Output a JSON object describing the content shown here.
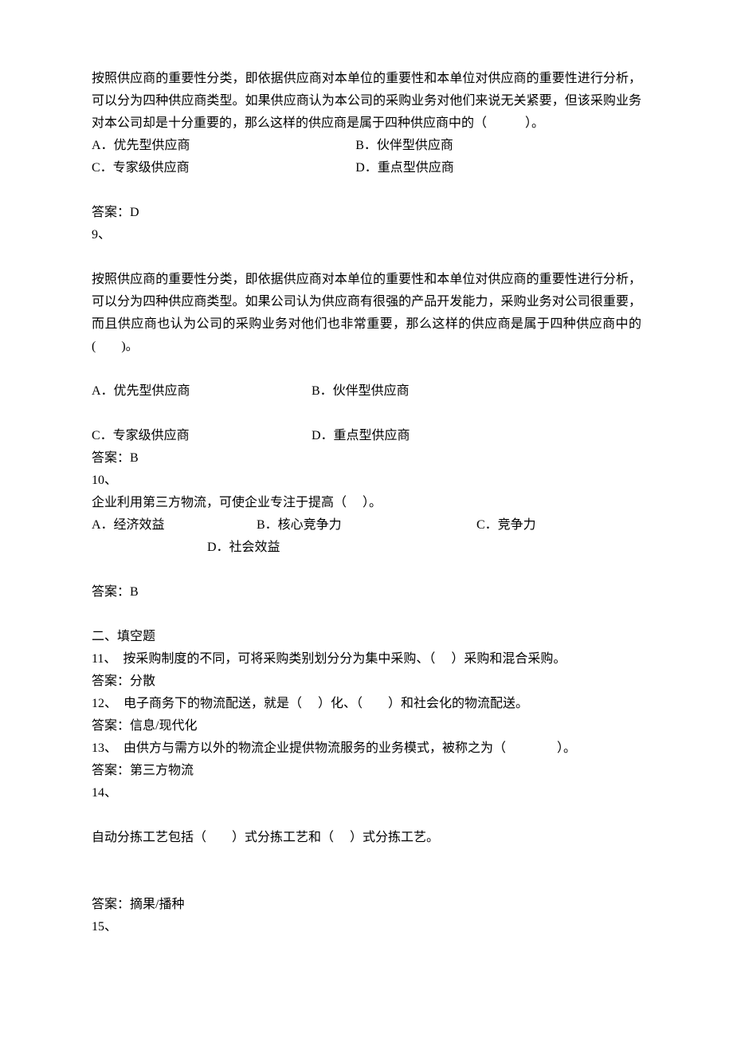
{
  "q8": {
    "stem": "按照供应商的重要性分类，即依据供应商对本单位的重要性和本单位对供应商的重要性进行分析，可以分为四种供应商类型。如果供应商认为本公司的采购业务对他们来说无关紧要，但该采购业务对本公司却是十分重要的，那么这样的供应商是属于四种供应商中的（　　　）。",
    "optA": "A．优先型供应商",
    "optB": "B．伙伴型供应商",
    "optC": "C．专家级供应商",
    "optD": "D．重点型供应商",
    "answer": "答案：D"
  },
  "q9": {
    "num": "9、",
    "stem": "按照供应商的重要性分类，即依据供应商对本单位的重要性和本单位对供应商的重要性进行分析，可以分为四种供应商类型。如果公司认为供应商有很强的产品开发能力，采购业务对公司很重要，而且供应商也认为公司的采购业务对他们也非常重要，那么这样的供应商是属于四种供应商中的(　　)。",
    "optA": "A．优先型供应商",
    "optB": "B．伙伴型供应商",
    "optC": "C．专家级供应商",
    "optD": "D．重点型供应商",
    "answer": "答案：B"
  },
  "q10": {
    "num": "10、",
    "stem": "企业利用第三方物流，可使企业专注于提高（　 ）。",
    "optA": "A．经济效益",
    "optB": "B．核心竞争力",
    "optC": "C．竞争力",
    "optD": "D．社会效益",
    "answer": "答案：B"
  },
  "section2": {
    "heading": "二、填空题"
  },
  "q11": {
    "stem": "11、　按采购制度的不同，可将采购类别划分分为集中采购、（　 ）采购和混合采购。",
    "answer": "答案：分散"
  },
  "q12": {
    "stem": "12、　电子商务下的物流配送，就是（　 ）化、（　　）和社会化的物流配送。",
    "answer": "答案：信息/现代化"
  },
  "q13": {
    "stem": "13、　由供方与需方以外的物流企业提供物流服务的业务模式，被称之为（　　　　）。",
    "answer": "答案：第三方物流"
  },
  "q14": {
    "num": "14、",
    "stem": "自动分拣工艺包括（　　）式分拣工艺和（　 ）式分拣工艺。",
    "answer": "答案：摘果/播种"
  },
  "q15": {
    "num": "15、"
  }
}
